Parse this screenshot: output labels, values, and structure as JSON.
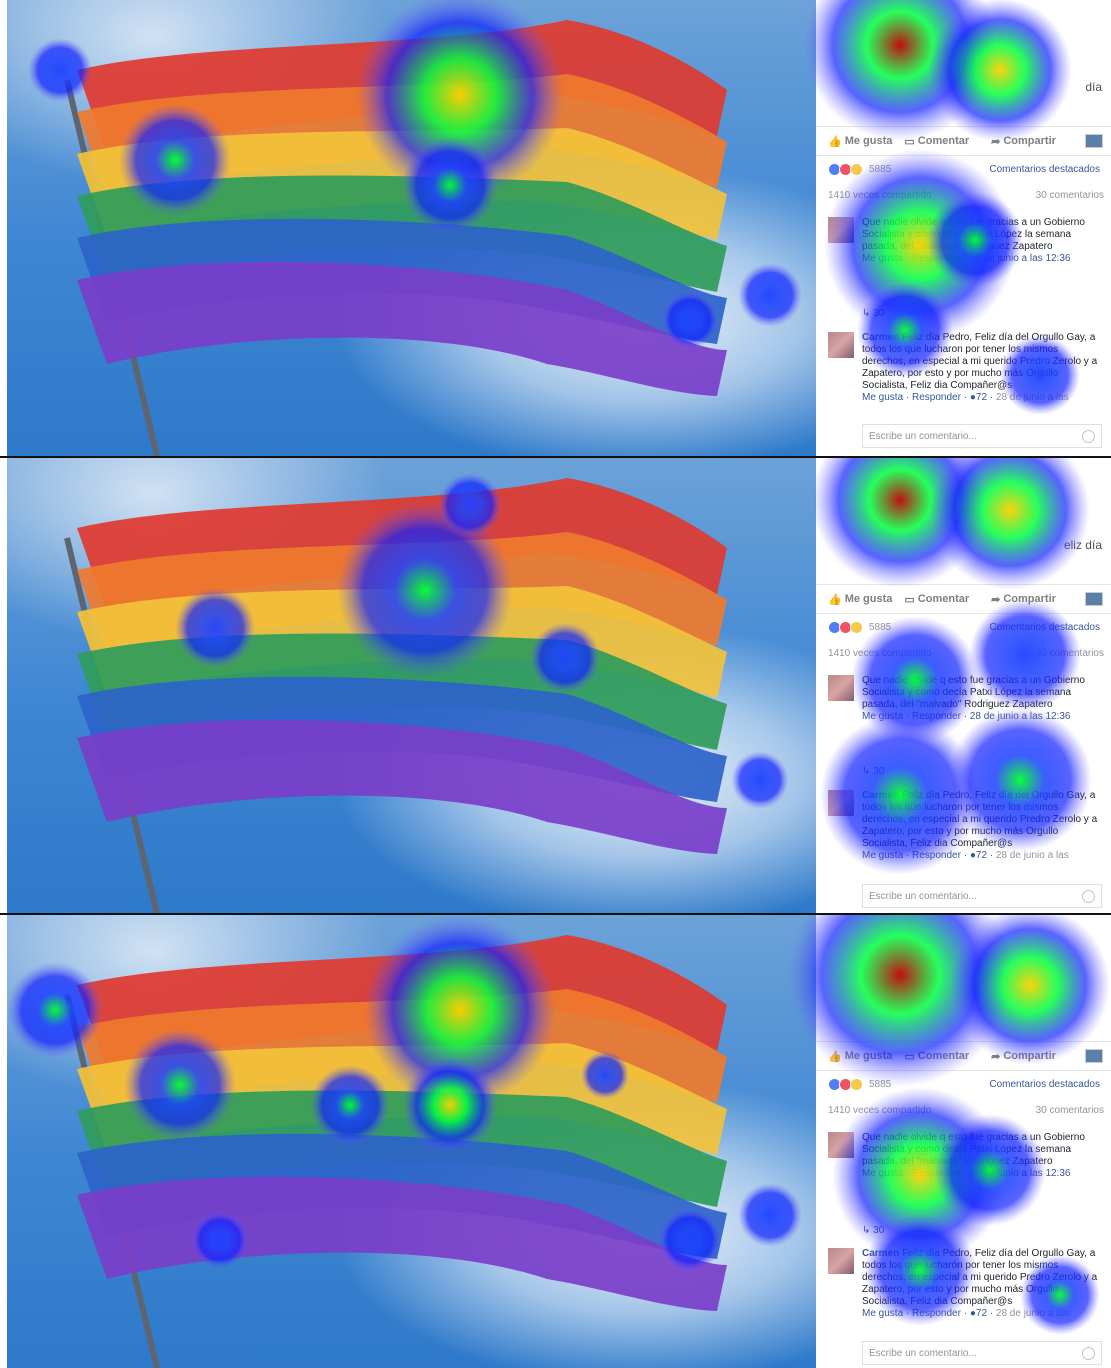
{
  "panels": [
    {
      "caption_tail": "día",
      "actions": {
        "like": "Me gusta",
        "comment": "Comentar",
        "share": "Compartir"
      },
      "reactions_count": "5885",
      "featured": "Comentarios destacados",
      "stats_left": "1410 veces compartido",
      "stats_right": "30 comentarios",
      "comment1_text": "Que nadie olvide q esto fue gracias a un Gobierno Socialista y como decía Patxi López la semana pasada, del \"malvado\" Rodriguez Zapatero",
      "comment1_meta": "Me gusta · Responder · 28 de junio a las 12:36",
      "comment2_author": "Carmen",
      "comment2_text": "Feliz día Pedro, Feliz día del Orgullo Gay, a todos los que lucharon por tener los mismos derechos, en especial a mi querido Predro Zerolo y a Zapatero, por esto y por mucho más Orgullo Socialista, Feliz dia Compañer@s",
      "comment2_meta_pre": "Me gusta · Responder ·",
      "comment2_likes": "72",
      "comment2_date": "28 de junio a las",
      "write_placeholder": "Escribe un comentario..."
    },
    {
      "caption_tail": "eliz día",
      "actions": {
        "like": "Me gusta",
        "comment": "Comentar",
        "share": "Compartir"
      },
      "reactions_count": "5885",
      "featured": "Comentarios destacados",
      "stats_left": "1410 veces compartido",
      "stats_right": "30 comentarios",
      "comment1_text": "Que nadie olvide q esto fue gracias a un Gobierno Socialista y como decía Patxi López la semana pasada, del \"malvado\" Rodriguez Zapatero",
      "comment1_meta": "Me gusta · Responder · 28 de junio a las 12:36",
      "comment2_author": "Carmen",
      "comment2_text": "Feliz día Pedro, Feliz día del Orgullo Gay, a todos los que lucharon por tener los mismos derechos, en especial a mi querido Predro Zerolo y a Zapatero, por esto y por mucho más Orgullo Socialista, Feliz dia Compañer@s",
      "comment2_meta_pre": "Me gusta · Responder ·",
      "comment2_likes": "72",
      "comment2_date": "28 de junio a las",
      "write_placeholder": "Escribe un comentario..."
    },
    {
      "caption_tail": "",
      "actions": {
        "like": "Me gusta",
        "comment": "Comentar",
        "share": "Compartir"
      },
      "reactions_count": "5885",
      "featured": "Comentarios destacados",
      "stats_left": "1410 veces compartido",
      "stats_right": "30 comentarios",
      "comment1_text": "Que nadie olvide q esto fue gracias a un Gobierno Socialista y como decía Patxi López la semana pasada, del \"malvado\" Rodriguez Zapatero",
      "comment1_meta": "Me gusta · Responder · 28 de junio a las 12:36",
      "comment2_author": "Carmen",
      "comment2_text": "Feliz día Pedro, Feliz día del Orgullo Gay, a todos los que lucharón por tener los mismos derechos, en especial a mi querido Predro Zerolo y a Zapatero, por esto y por mucho más Orgullo Socialista, Feliz dia Compañer@s",
      "comment2_meta_pre": "Me gusta · Responder ·",
      "comment2_likes": "72",
      "comment2_date": "28 de junio a las",
      "write_placeholder": "Escribe un comentario..."
    }
  ],
  "reply_count": "30",
  "colors": {
    "fb_link": "#365899",
    "muted": "#90949c",
    "sky": "#3d86d3"
  }
}
